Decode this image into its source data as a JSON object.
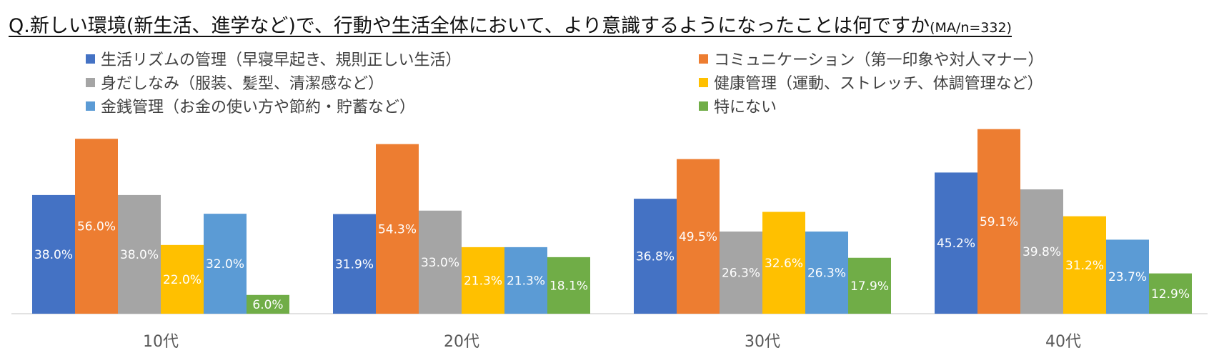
{
  "chart_data": {
    "type": "bar",
    "title": "Q.新しい環境(新生活、進学など)で、行動や生活全体において、より意識するようになったことは何ですか",
    "subtitle": "(MA/n=332)",
    "categories": [
      "10代",
      "20代",
      "30代",
      "40代"
    ],
    "series": [
      {
        "name": "生活リズムの管理（早寝早起き、規則正しい生活）",
        "color": "#4472C4",
        "values": [
          38.0,
          31.9,
          36.8,
          45.2
        ],
        "labels": [
          "38.0%",
          "31.9%",
          "36.8%",
          "45.2%"
        ]
      },
      {
        "name": "コミュニケーション（第一印象や対人マナー）",
        "color": "#ED7D31",
        "values": [
          56.0,
          54.3,
          49.5,
          59.1
        ],
        "labels": [
          "56.0%",
          "54.3%",
          "49.5%",
          "59.1%"
        ]
      },
      {
        "name": "身だしなみ（服装、髪型、清潔感など）",
        "color": "#A5A5A5",
        "values": [
          38.0,
          33.0,
          26.3,
          39.8
        ],
        "labels": [
          "38.0%",
          "33.0%",
          "26.3%",
          "39.8%"
        ]
      },
      {
        "name": "健康管理（運動、ストレッチ、体調管理など）",
        "color": "#FFC000",
        "values": [
          22.0,
          21.3,
          32.6,
          31.2
        ],
        "labels": [
          "22.0%",
          "21.3%",
          "32.6%",
          "31.2%"
        ]
      },
      {
        "name": "金銭管理（お金の使い方や節約・貯蓄など）",
        "color": "#5B9BD5",
        "values": [
          32.0,
          21.3,
          26.3,
          23.7
        ],
        "labels": [
          "32.0%",
          "21.3%",
          "26.3%",
          "23.7%"
        ]
      },
      {
        "name": "特にない",
        "color": "#70AD47",
        "values": [
          6.0,
          18.1,
          17.9,
          12.9
        ],
        "labels": [
          "6.0%",
          "18.1%",
          "17.9%",
          "12.9%"
        ]
      }
    ],
    "ylim": [
      0,
      62
    ],
    "legend_position": "top",
    "grid": false
  }
}
